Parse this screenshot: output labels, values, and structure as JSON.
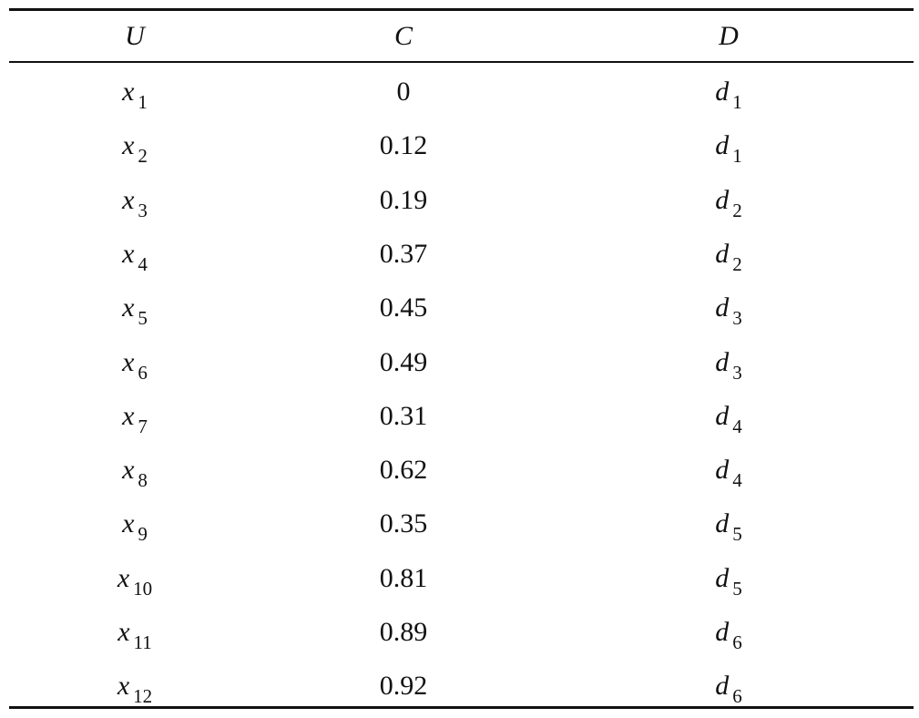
{
  "table": {
    "header": [
      "U",
      "C",
      "D"
    ],
    "rows": [
      [
        {
          "var": "x",
          "sub": "1"
        },
        "0",
        {
          "var": "d",
          "sub": "1"
        }
      ],
      [
        {
          "var": "x",
          "sub": "2"
        },
        "0.12",
        {
          "var": "d",
          "sub": "1"
        }
      ],
      [
        {
          "var": "x",
          "sub": "3"
        },
        "0.19",
        {
          "var": "d",
          "sub": "2"
        }
      ],
      [
        {
          "var": "x",
          "sub": "4"
        },
        "0.37",
        {
          "var": "d",
          "sub": "2"
        }
      ],
      [
        {
          "var": "x",
          "sub": "5"
        },
        "0.45",
        {
          "var": "d",
          "sub": "3"
        }
      ],
      [
        {
          "var": "x",
          "sub": "6"
        },
        "0.49",
        {
          "var": "d",
          "sub": "3"
        }
      ],
      [
        {
          "var": "x",
          "sub": "7"
        },
        "0.31",
        {
          "var": "d",
          "sub": "4"
        }
      ],
      [
        {
          "var": "x",
          "sub": "8"
        },
        "0.62",
        {
          "var": "d",
          "sub": "4"
        }
      ],
      [
        {
          "var": "x",
          "sub": "9"
        },
        "0.35",
        {
          "var": "d",
          "sub": "5"
        }
      ],
      [
        {
          "var": "x",
          "sub": "10"
        },
        "0.81",
        {
          "var": "d",
          "sub": "5"
        }
      ],
      [
        {
          "var": "x",
          "sub": "11"
        },
        "0.89",
        {
          "var": "d",
          "sub": "6"
        }
      ],
      [
        {
          "var": "x",
          "sub": "12"
        },
        "0.92",
        {
          "var": "d",
          "sub": "6"
        }
      ]
    ]
  }
}
